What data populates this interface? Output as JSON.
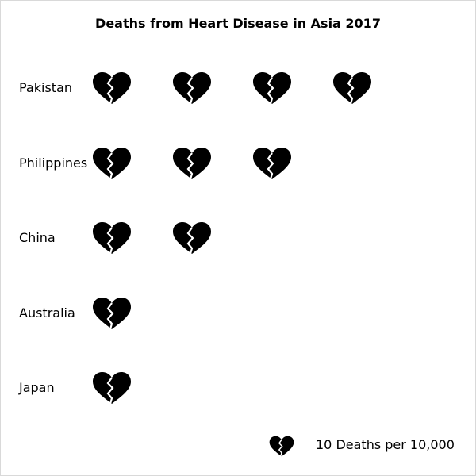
{
  "chart_data": {
    "type": "pictograph",
    "title": "Deaths from Heart Disease in Asia 2017",
    "categories": [
      "Pakistan",
      "Philippines",
      "China",
      "Australia",
      "Japan"
    ],
    "values": [
      4,
      3,
      2,
      1,
      1
    ],
    "icon": "broken-heart-icon",
    "icon_color": "#000000",
    "legend": {
      "label": "10 Deaths per 10,000",
      "placement": "bottom-right"
    }
  }
}
